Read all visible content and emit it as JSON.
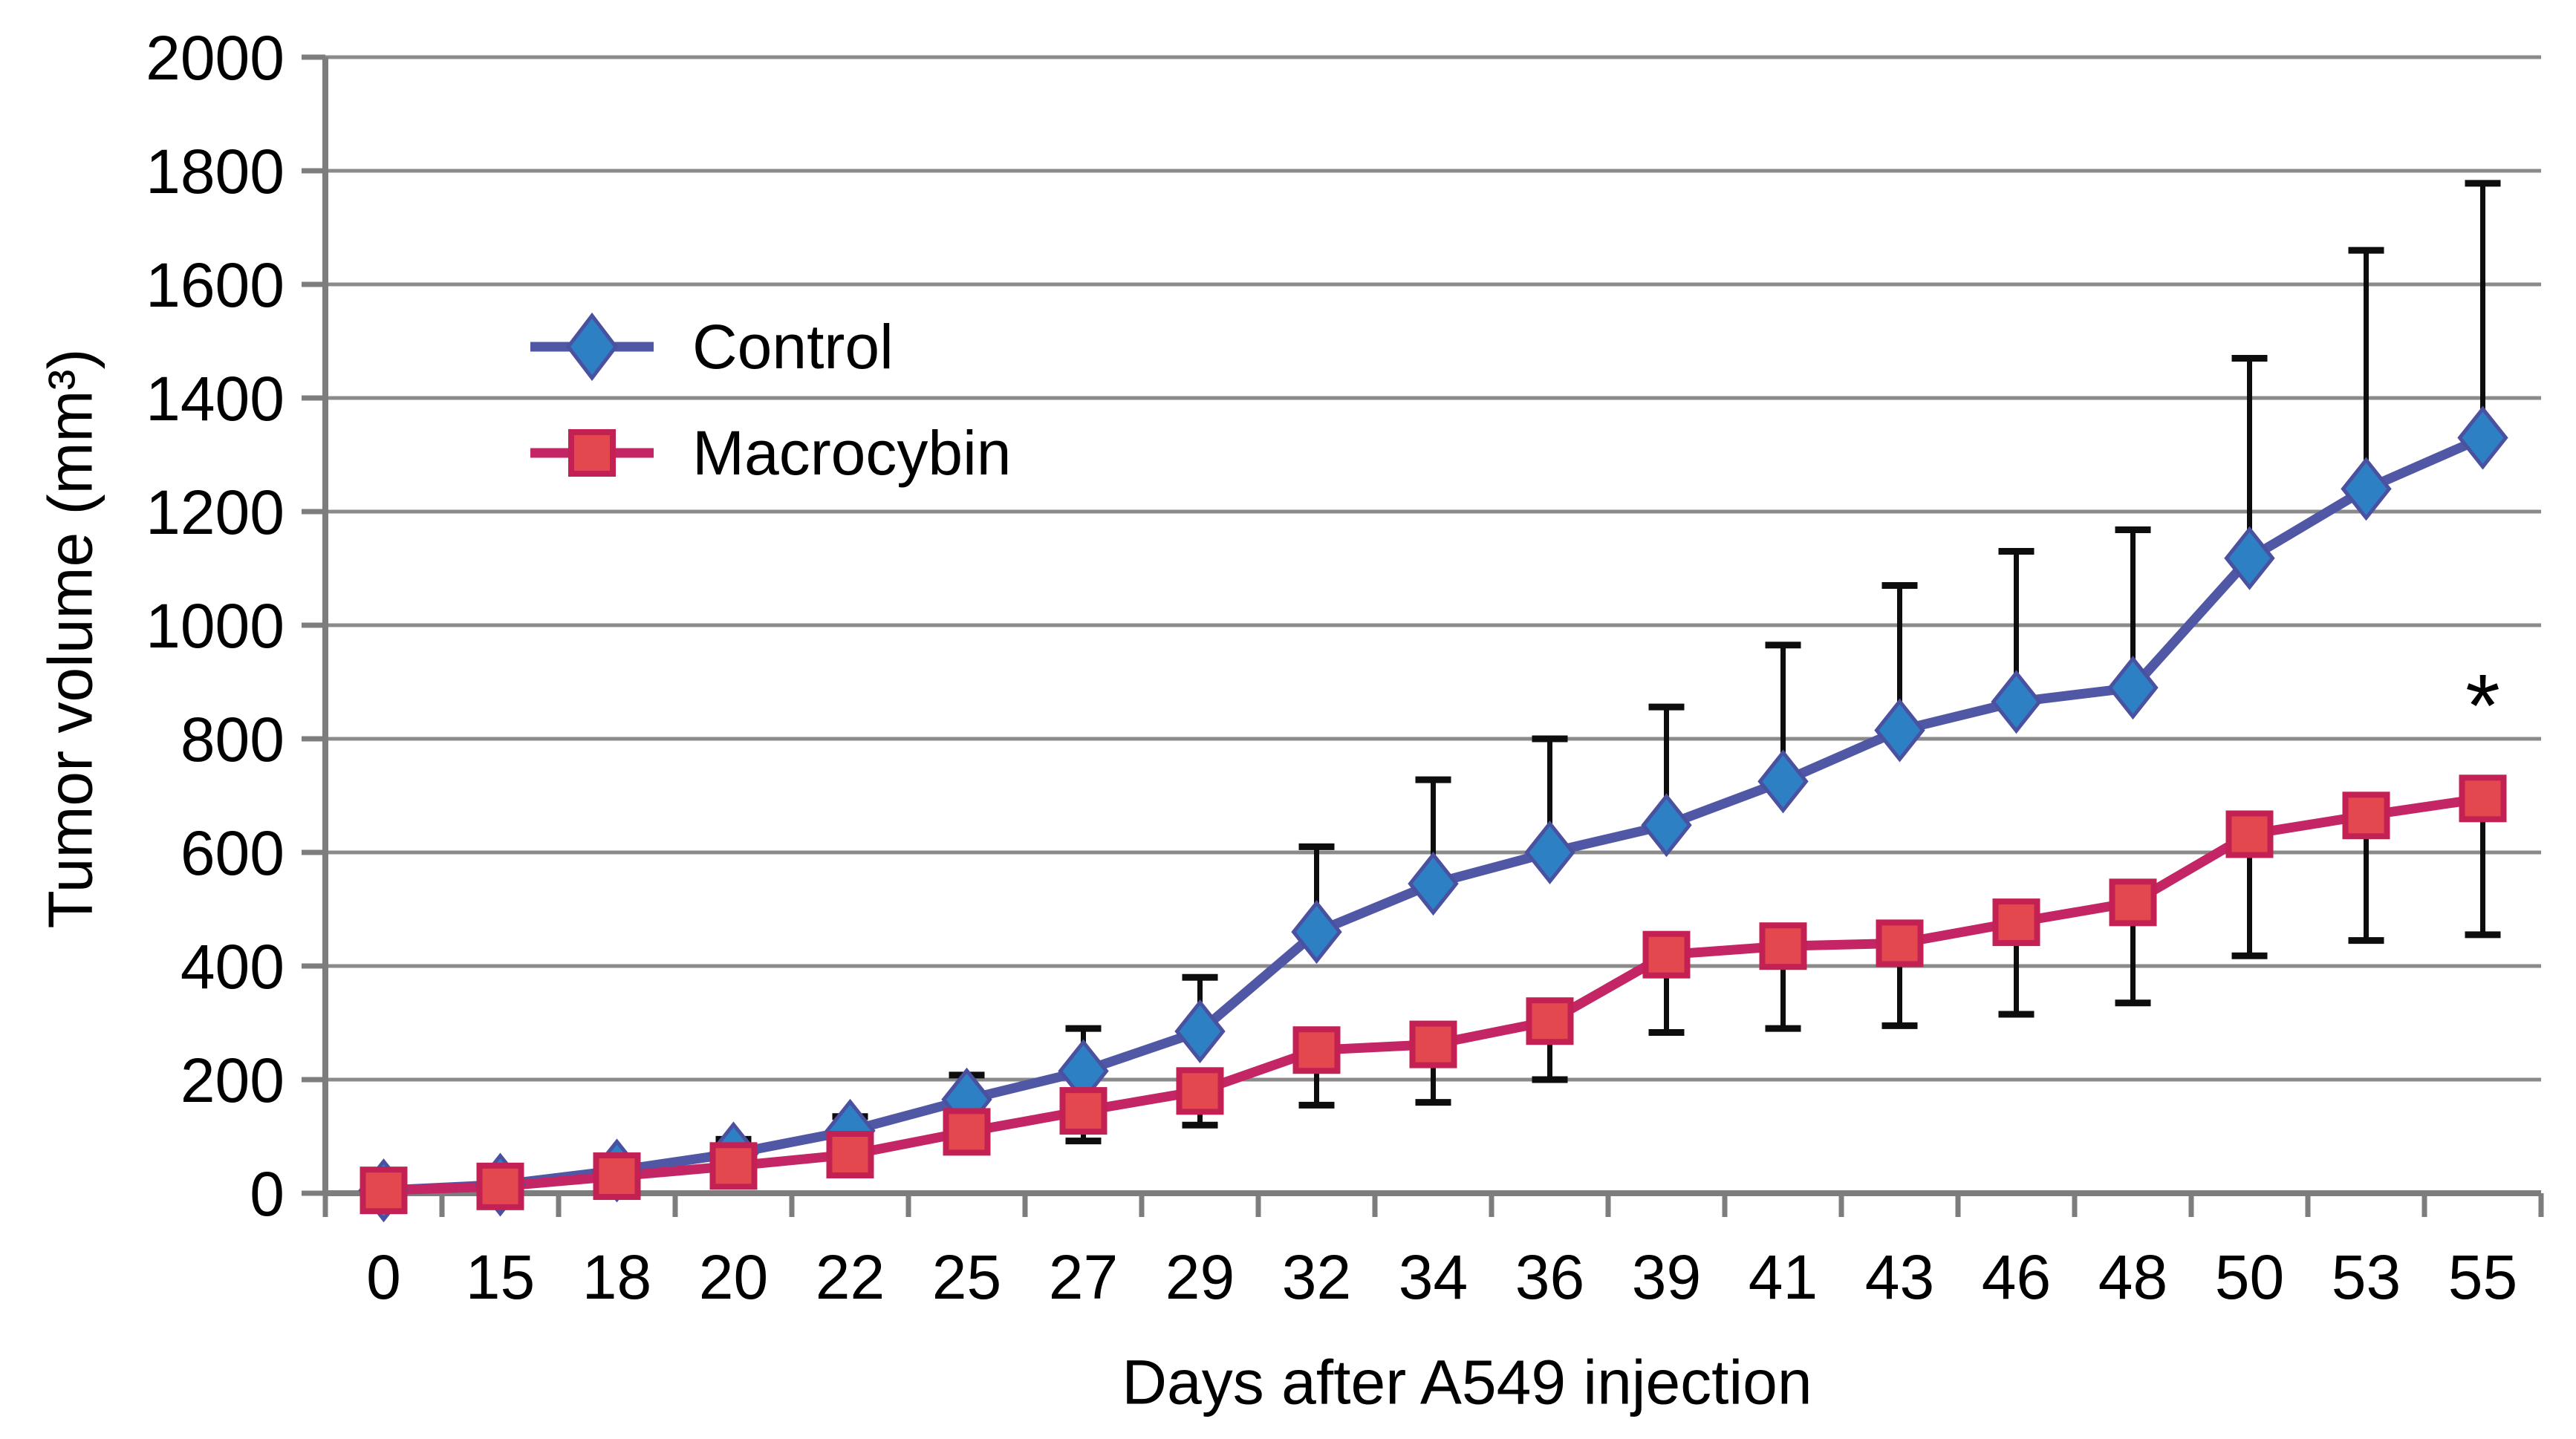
{
  "chart_data": {
    "type": "line",
    "title": "",
    "xlabel": "Days after A549 injection",
    "ylabel": "Tumor volume (mm³)",
    "categories": [
      "0",
      "15",
      "18",
      "20",
      "22",
      "25",
      "27",
      "29",
      "32",
      "34",
      "36",
      "39",
      "41",
      "43",
      "46",
      "48",
      "50",
      "53",
      "55"
    ],
    "ylim": [
      0,
      2000
    ],
    "ytick_step": 200,
    "grid": true,
    "legend_position": "upper-left-inside",
    "grid_color": "#8a8a8a",
    "axis_color": "#7d7d7d",
    "error_bar_color": "#0d0d0d",
    "text_color": "#000000",
    "series": [
      {
        "name": "Control",
        "marker": "diamond",
        "line_color": "#5057a4",
        "marker_color": "#2e80c4",
        "marker_border": "#4a51a0",
        "values": [
          5,
          15,
          40,
          70,
          110,
          165,
          215,
          285,
          460,
          545,
          600,
          648,
          725,
          815,
          865,
          890,
          1118,
          1240,
          1330
        ],
        "error_top": [
          null,
          null,
          null,
          95,
          135,
          208,
          290,
          380,
          610,
          728,
          800,
          856,
          965,
          1070,
          1130,
          1168,
          1470,
          1660,
          1778
        ]
      },
      {
        "name": "Macrocybin",
        "marker": "square",
        "line_color": "#c32565",
        "marker_color": "#e4484f",
        "marker_border": "#c32053",
        "values": [
          5,
          12,
          30,
          48,
          68,
          108,
          145,
          180,
          252,
          262,
          303,
          420,
          435,
          440,
          477,
          512,
          632,
          665,
          695
        ],
        "error_bottom": [
          null,
          null,
          null,
          null,
          null,
          75,
          92,
          120,
          155,
          160,
          200,
          283,
          290,
          295,
          315,
          335,
          418,
          445,
          455
        ]
      }
    ],
    "annotation": {
      "text": "*",
      "category": "55",
      "value": 888
    }
  }
}
